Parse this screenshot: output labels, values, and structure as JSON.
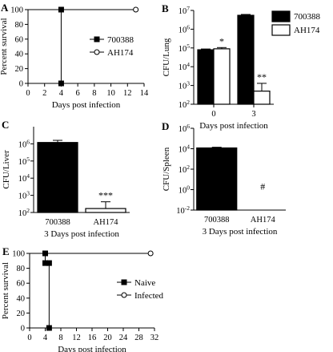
{
  "chart_data": [
    {
      "panel": "A",
      "type": "line",
      "xlabel": "Days post infection",
      "ylabel": "Percent survival",
      "xlim": [
        0,
        14
      ],
      "ylim": [
        0,
        100
      ],
      "x_ticks": [
        0,
        2,
        4,
        6,
        8,
        10,
        12,
        14
      ],
      "y_ticks": [
        0,
        20,
        40,
        60,
        80,
        100
      ],
      "legend_position": "right",
      "series": [
        {
          "name": "700388",
          "marker": "filled-square",
          "x": [
            0,
            4,
            4
          ],
          "y": [
            100,
            100,
            0
          ]
        },
        {
          "name": "AH174",
          "marker": "open-circle",
          "x": [
            0,
            13
          ],
          "y": [
            100,
            100
          ]
        }
      ]
    },
    {
      "panel": "B",
      "type": "bar",
      "scale": "log",
      "xlabel": "Days post infection",
      "ylabel": "CFU/Lung",
      "categories": [
        "0",
        "3"
      ],
      "ylim": [
        100,
        10000000
      ],
      "y_ticks": [
        100,
        1000,
        10000,
        100000,
        1000000,
        10000000
      ],
      "y_tick_labels": [
        [
          "10",
          "2"
        ],
        [
          "10",
          "3"
        ],
        [
          "10",
          "4"
        ],
        [
          "10",
          "5"
        ],
        [
          "10",
          "6"
        ],
        [
          "10",
          "7"
        ]
      ],
      "legend_position": "top-right",
      "series": [
        {
          "name": "700388",
          "fill": "#000000",
          "values": [
            80000,
            5500000
          ],
          "error": [
            88000,
            6100000
          ]
        },
        {
          "name": "AH174",
          "fill": "#ffffff",
          "values": [
            90000,
            500
          ],
          "error": [
            105000,
            1300
          ]
        }
      ],
      "annotations": [
        {
          "series": 1,
          "category": 0,
          "text": "*"
        },
        {
          "series": 1,
          "category": 1,
          "text": "**"
        }
      ]
    },
    {
      "panel": "C",
      "type": "bar",
      "scale": "log",
      "xlabel": "3 Days post infection",
      "ylabel": "CFU/Liver",
      "categories": [
        "700388",
        "AH174"
      ],
      "ylim": [
        100,
        10000000
      ],
      "y_ticks": [
        100,
        1000,
        10000,
        100000,
        1000000
      ],
      "y_tick_labels": [
        [
          "10",
          "2"
        ],
        [
          "10",
          "3"
        ],
        [
          "10",
          "4"
        ],
        [
          "10",
          "5"
        ],
        [
          "10",
          "6"
        ]
      ],
      "values": [
        1200000,
        170
      ],
      "error": [
        1600000,
        420
      ],
      "fills": [
        "#000000",
        "#ffffff"
      ],
      "annotations": [
        {
          "category": 1,
          "text": "***"
        }
      ]
    },
    {
      "panel": "D",
      "type": "bar",
      "scale": "log",
      "xlabel": "3 Days post infection",
      "ylabel": "CFU/Spleen",
      "categories": [
        "700388",
        "AH174"
      ],
      "ylim": [
        0.01,
        1000000
      ],
      "y_ticks": [
        0.01,
        1,
        100,
        10000,
        1000000
      ],
      "y_tick_labels": [
        [
          "10",
          "-2"
        ],
        [
          "10",
          "0"
        ],
        [
          "10",
          "2"
        ],
        [
          "10",
          "4"
        ],
        [
          "10",
          "6"
        ]
      ],
      "values": [
        12000,
        null
      ],
      "error": [
        14000,
        null
      ],
      "fills": [
        "#000000",
        "#ffffff"
      ],
      "annotations": [
        {
          "category": 1,
          "text": "#"
        }
      ]
    },
    {
      "panel": "E",
      "type": "line",
      "xlabel": "Days post infection",
      "ylabel": "Percent survival",
      "xlim": [
        0,
        32
      ],
      "ylim": [
        0,
        100
      ],
      "x_ticks": [
        0,
        4,
        8,
        12,
        16,
        20,
        24,
        28,
        32
      ],
      "y_ticks": [
        0,
        20,
        40,
        60,
        80,
        100
      ],
      "legend_position": "right",
      "series": [
        {
          "name": "Naive",
          "marker": "filled-square",
          "x": [
            0,
            4,
            4,
            5,
            5
          ],
          "y": [
            100,
            100,
            87,
            87,
            0
          ]
        },
        {
          "name": "Infected",
          "marker": "open-circle",
          "x": [
            0,
            31
          ],
          "y": [
            100,
            100
          ]
        }
      ]
    }
  ]
}
